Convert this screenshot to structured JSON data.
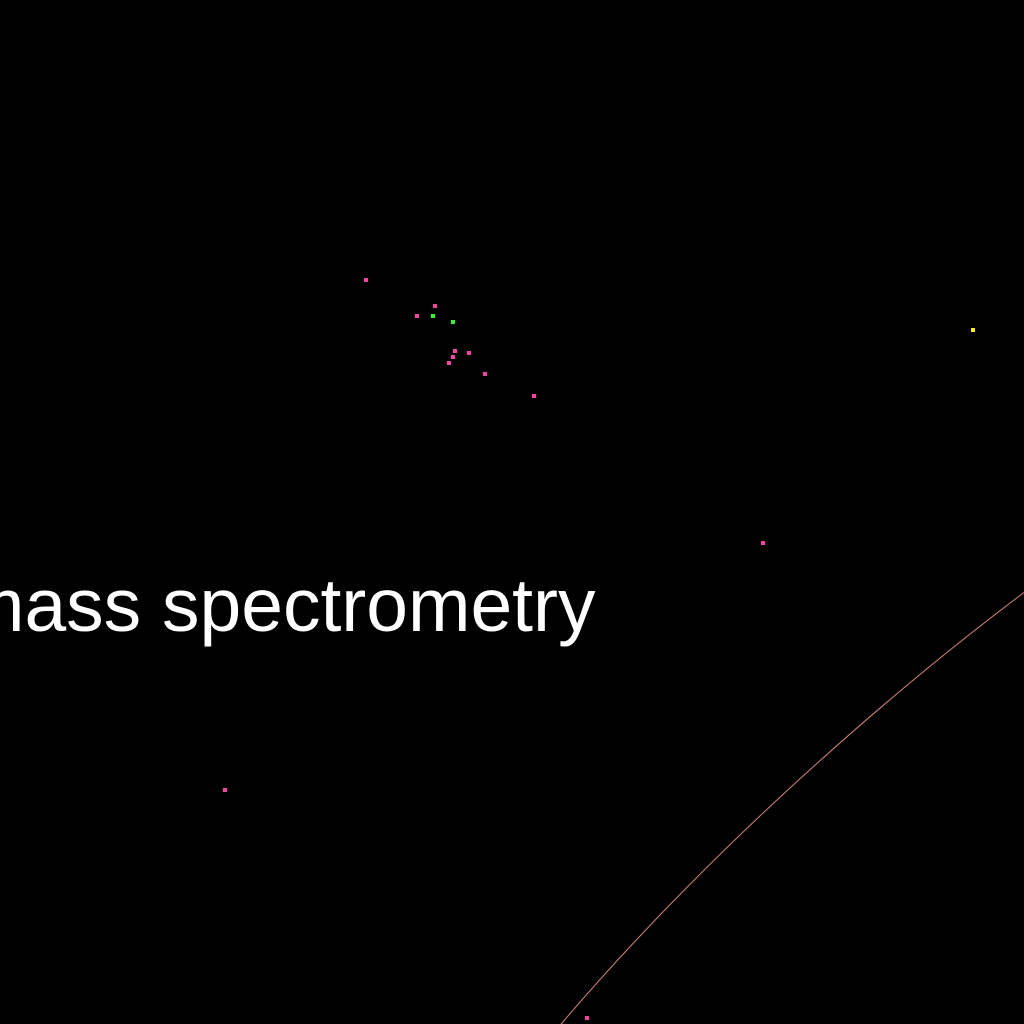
{
  "label": {
    "text": "mass spectrometry",
    "color": "#ffffff"
  },
  "background_color": "#000000",
  "point_colors": {
    "magenta": "#ff3fa8",
    "green": "#22ff22",
    "yellow": "#ffee00"
  },
  "curve_color": "#d9826a"
}
